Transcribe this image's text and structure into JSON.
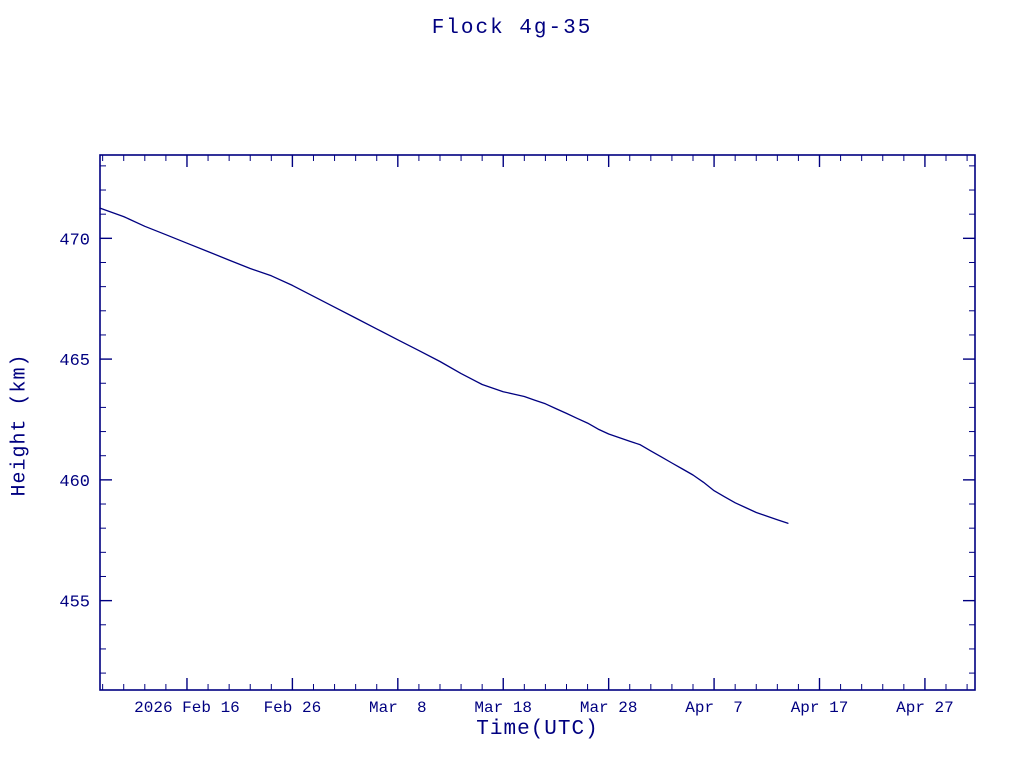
{
  "page": {
    "background": "#ffffff",
    "accent": "#000080"
  },
  "chart_data": {
    "type": "line",
    "title": "Flock 4g-35",
    "xlabel": "Time(UTC)",
    "ylabel": "Height (km)",
    "grid": false,
    "legend": null,
    "line_color": "#000080",
    "axis_color": "#000080",
    "x_unit": "days since 2026 Feb 16",
    "xlim": [
      -8.25,
      74.75
    ],
    "ylim": [
      451.3,
      473.45
    ],
    "x_major_ticks": [
      {
        "x": 0,
        "label": "2026 Feb 16"
      },
      {
        "x": 10,
        "label": "Feb 26"
      },
      {
        "x": 20,
        "label": "Mar  8"
      },
      {
        "x": 30,
        "label": "Mar 18"
      },
      {
        "x": 40,
        "label": "Mar 28"
      },
      {
        "x": 50,
        "label": "Apr  7"
      },
      {
        "x": 60,
        "label": "Apr 17"
      },
      {
        "x": 70,
        "label": "Apr 27"
      }
    ],
    "x_minor_step": 2,
    "y_major_ticks": [
      455,
      460,
      465,
      470
    ],
    "y_minor_step": 1,
    "series": [
      {
        "name": "height",
        "points": [
          [
            -8.25,
            471.25
          ],
          [
            -6,
            470.9
          ],
          [
            -4,
            470.5
          ],
          [
            -2,
            470.15
          ],
          [
            0,
            469.8
          ],
          [
            2,
            469.45
          ],
          [
            4,
            469.1
          ],
          [
            6,
            468.75
          ],
          [
            8,
            468.45
          ],
          [
            10,
            468.05
          ],
          [
            12,
            467.6
          ],
          [
            14,
            467.15
          ],
          [
            16,
            466.7
          ],
          [
            18,
            466.25
          ],
          [
            20,
            465.8
          ],
          [
            22,
            465.35
          ],
          [
            24,
            464.9
          ],
          [
            26,
            464.4
          ],
          [
            28,
            463.95
          ],
          [
            29,
            463.8
          ],
          [
            30,
            463.65
          ],
          [
            31,
            463.55
          ],
          [
            32,
            463.45
          ],
          [
            33,
            463.3
          ],
          [
            34,
            463.15
          ],
          [
            35,
            462.95
          ],
          [
            36,
            462.75
          ],
          [
            37,
            462.55
          ],
          [
            38,
            462.35
          ],
          [
            39,
            462.1
          ],
          [
            40,
            461.9
          ],
          [
            41,
            461.75
          ],
          [
            42,
            461.6
          ],
          [
            43,
            461.45
          ],
          [
            44,
            461.2
          ],
          [
            45,
            460.95
          ],
          [
            46,
            460.7
          ],
          [
            47,
            460.45
          ],
          [
            48,
            460.2
          ],
          [
            49,
            459.9
          ],
          [
            50,
            459.55
          ],
          [
            51,
            459.3
          ],
          [
            52,
            459.05
          ],
          [
            53,
            458.85
          ],
          [
            54,
            458.65
          ],
          [
            55,
            458.5
          ],
          [
            56,
            458.35
          ],
          [
            57,
            458.2
          ]
        ]
      }
    ]
  }
}
